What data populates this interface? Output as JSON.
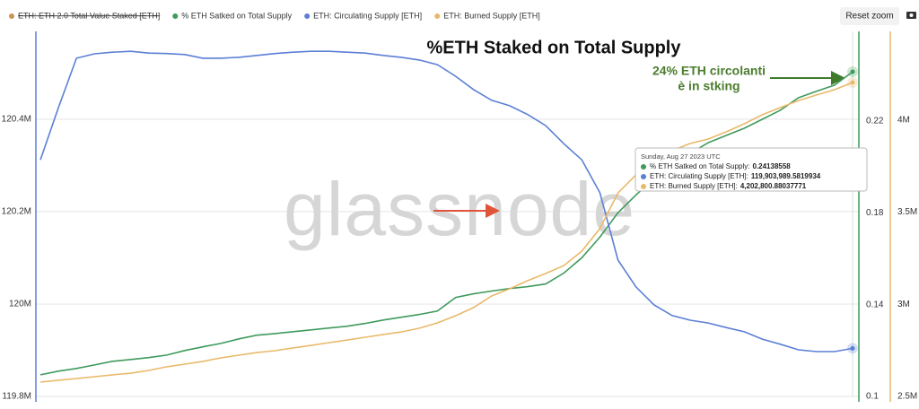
{
  "chart_data": {
    "type": "line",
    "title": "%ETH Staked on Total Supply",
    "annotation": [
      "24% ETH  circolanti",
      "è in stking"
    ],
    "watermark": "glassnode",
    "reset_button": "Reset zoom",
    "hidden_series": {
      "name": "ETH: ETH 2.0 Total Value Staked [ETH]",
      "color": "#c9935a"
    },
    "ylim": [
      119800000,
      120590000
    ],
    "yticks": [
      {
        "value": 119800000,
        "label": "119.8M"
      },
      {
        "value": 120000000,
        "label": "120M"
      },
      {
        "value": 120200000,
        "label": "120.2M"
      },
      {
        "value": 120400000,
        "label": "120.4M"
      }
    ],
    "y2lim": [
      0.1,
      0.259
    ],
    "y2ticks": [
      0.1,
      0.14,
      0.18,
      0.22
    ],
    "y3lim": [
      2500000,
      4480000
    ],
    "y3ticks": [
      {
        "value": 2500000,
        "label": "2.5M"
      },
      {
        "value": 3000000,
        "label": "3M"
      },
      {
        "value": 3500000,
        "label": "3.5M"
      },
      {
        "value": 4000000,
        "label": "4M"
      }
    ],
    "grid": true,
    "series": [
      {
        "name": "% ETH Satked on Total Supply",
        "color": "#3f9a5c",
        "axis": "y2",
        "values": [
          0.1094,
          0.111,
          0.1122,
          0.1137,
          0.1153,
          0.1161,
          0.1169,
          0.118,
          0.12,
          0.1216,
          0.1231,
          0.1251,
          0.1267,
          0.1274,
          0.1282,
          0.129,
          0.1298,
          0.1306,
          0.1318,
          0.1333,
          0.1345,
          0.1357,
          0.1372,
          0.1431,
          0.1447,
          0.1459,
          0.147,
          0.1478,
          0.149,
          0.1537,
          0.1604,
          0.1694,
          0.18,
          0.1878,
          0.1949,
          0.2007,
          0.2058,
          0.2105,
          0.2137,
          0.2168,
          0.2207,
          0.2247,
          0.2301,
          0.2329,
          0.2356,
          0.2414
        ]
      },
      {
        "name": "ETH: Circulating Supply [ETH]",
        "color": "#5b7fd6",
        "axis": "y",
        "values": [
          120312000,
          120425000,
          120532000,
          120541500,
          120545000,
          120547000,
          120543000,
          120542000,
          120540000,
          120532000,
          120532000,
          120534000,
          120538000,
          120542000,
          120545000,
          120547000,
          120547000,
          120545000,
          120543000,
          120538000,
          120534000,
          120528000,
          120518000,
          120493000,
          120464000,
          120441000,
          120429000,
          120410000,
          120386000,
          120347000,
          120312000,
          120241000,
          120095000,
          120037000,
          119998000,
          119975000,
          119965000,
          119959000,
          119949000,
          119940000,
          119924000,
          119913000,
          119901000,
          119897000,
          119897000,
          119904000
        ]
      },
      {
        "name": "ETH: Burned Supply [ETH]",
        "color": "#e9b96a",
        "axis": "y3",
        "values": [
          2578000,
          2588000,
          2597000,
          2607000,
          2617000,
          2626000,
          2641000,
          2661000,
          2675000,
          2690000,
          2709000,
          2724000,
          2738000,
          2748000,
          2763000,
          2777000,
          2792000,
          2806000,
          2821000,
          2836000,
          2850000,
          2870000,
          2899000,
          2938000,
          2982000,
          3045000,
          3084000,
          3128000,
          3167000,
          3210000,
          3288000,
          3410000,
          3604000,
          3702000,
          3775000,
          3833000,
          3872000,
          3896000,
          3935000,
          3979000,
          4028000,
          4067000,
          4105000,
          4135000,
          4164000,
          4202800
        ]
      }
    ],
    "tooltip": {
      "date": "Sunday, Aug 27 2023 UTC",
      "items": [
        {
          "label": "% ETH Satked on Total Supply:",
          "value": 0.24138558
        },
        {
          "label": "ETH: Circulating Supply [ETH]:",
          "value": {
            "value": 119903989.5819934,
            "label": "119,903,989.5819934"
          }
        },
        {
          "label": "ETH: Burned Supply [ETH]:",
          "value": {
            "value": 4202800.88037771,
            "label": "4,202,800.88037771"
          }
        }
      ]
    }
  }
}
